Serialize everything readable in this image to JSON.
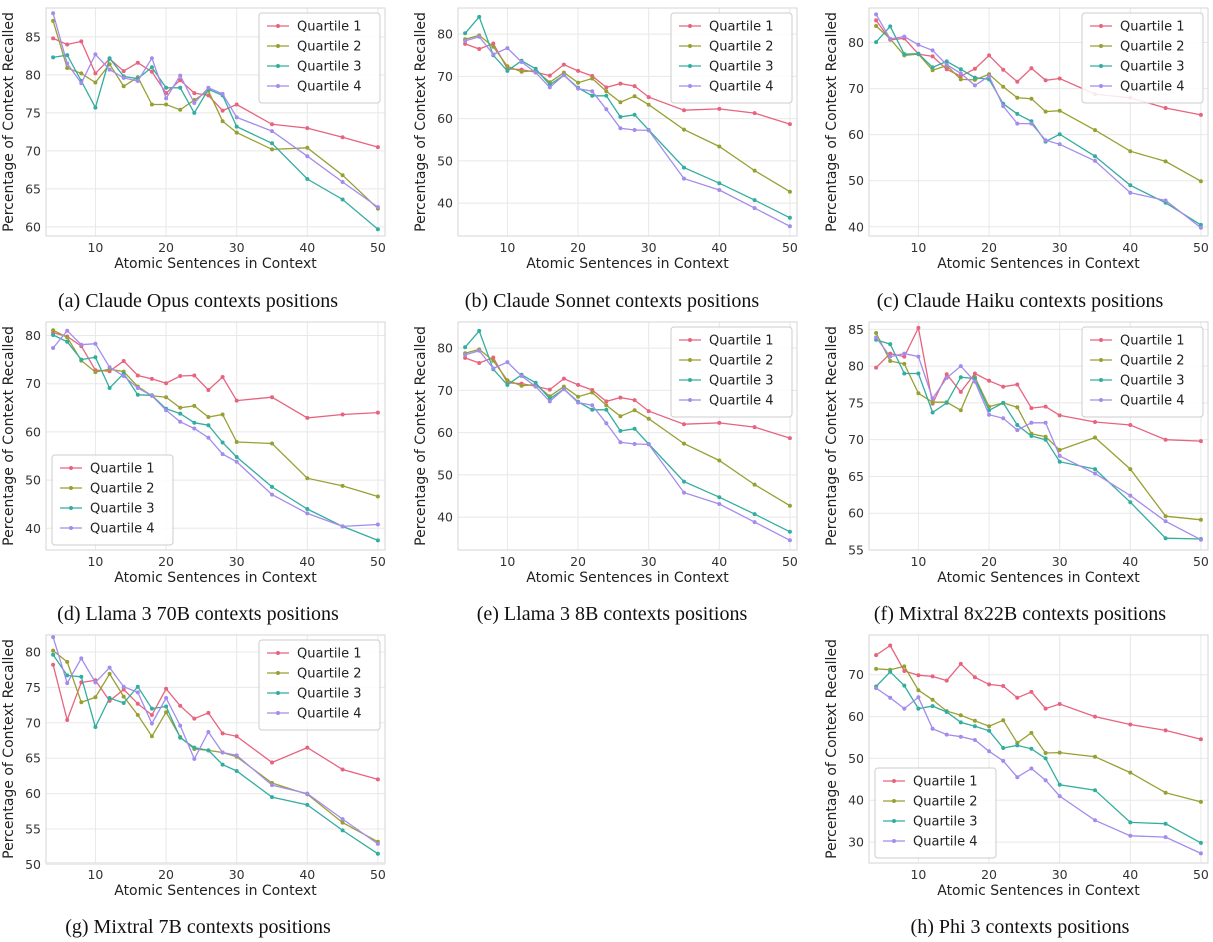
{
  "colors": {
    "Quartile 1": "#e8637e",
    "Quartile 2": "#98a032",
    "Quartile 3": "#33ad9f",
    "Quartile 4": "#a48cec"
  },
  "chart_data": [
    {
      "id": "a",
      "type": "line",
      "caption": "(a) Claude Opus contexts positions",
      "xlabel": "Atomic Sentences in Context",
      "ylabel": "Percentage of Context Recalled",
      "xlim": [
        3,
        51
      ],
      "ylim": [
        58.8,
        88.8
      ],
      "xticks": [
        10,
        20,
        30,
        40,
        50
      ],
      "yticks": [
        60,
        65,
        70,
        75,
        80,
        85
      ],
      "grid": true,
      "legend_position": "top-right",
      "x": [
        4,
        6,
        8,
        10,
        12,
        14,
        16,
        18,
        20,
        22,
        24,
        26,
        28,
        30,
        35,
        40,
        45,
        50
      ],
      "series": [
        {
          "name": "Quartile 1",
          "values": [
            84.8,
            84.0,
            84.4,
            80.2,
            82.1,
            80.5,
            81.6,
            80.4,
            77.6,
            79.3,
            77.6,
            77.3,
            75.3,
            76.1,
            73.5,
            73.0,
            71.8,
            70.5
          ]
        },
        {
          "name": "Quartile 2",
          "values": [
            87.1,
            80.9,
            80.2,
            79.0,
            81.4,
            78.5,
            79.7,
            76.1,
            76.1,
            75.4,
            76.7,
            77.9,
            73.9,
            72.4,
            70.2,
            70.4,
            66.8,
            62.4
          ]
        },
        {
          "name": "Quartile 3",
          "values": [
            82.3,
            82.6,
            79.2,
            75.7,
            82.2,
            79.8,
            79.5,
            81.0,
            78.3,
            78.3,
            75.0,
            78.1,
            77.3,
            73.2,
            71.0,
            66.3,
            63.6,
            59.7
          ]
        },
        {
          "name": "Quartile 4",
          "values": [
            88.1,
            81.5,
            78.9,
            82.7,
            80.7,
            79.6,
            79.2,
            82.2,
            76.9,
            79.9,
            76.3,
            78.3,
            77.5,
            74.4,
            72.6,
            69.3,
            65.9,
            62.6
          ]
        }
      ]
    },
    {
      "id": "b",
      "type": "line",
      "caption": "(b) Claude Sonnet contexts positions",
      "xlabel": "Atomic Sentences in Context",
      "ylabel": "Percentage of Context Recalled",
      "xlim": [
        3,
        51
      ],
      "ylim": [
        32.2,
        86.2
      ],
      "xticks": [
        10,
        20,
        30,
        40,
        50
      ],
      "yticks": [
        40,
        50,
        60,
        70,
        80
      ],
      "grid": true,
      "legend_position": "top-right",
      "x": [
        4,
        6,
        8,
        10,
        12,
        14,
        16,
        18,
        20,
        22,
        24,
        26,
        28,
        30,
        35,
        40,
        45,
        50
      ],
      "series": [
        {
          "name": "Quartile 1",
          "values": [
            77.7,
            76.5,
            77.8,
            71.8,
            71.6,
            71.0,
            70.2,
            72.8,
            71.3,
            70.1,
            67.4,
            68.3,
            67.7,
            65.1,
            62.0,
            62.3,
            61.3,
            58.7
          ]
        },
        {
          "name": "Quartile 2",
          "values": [
            78.8,
            79.7,
            77.0,
            72.4,
            71.1,
            71.4,
            68.6,
            70.9,
            68.5,
            69.5,
            66.5,
            63.9,
            65.3,
            63.3,
            57.4,
            53.4,
            47.7,
            42.7
          ]
        },
        {
          "name": "Quartile 3",
          "values": [
            80.2,
            84.1,
            75.0,
            71.3,
            73.7,
            71.8,
            68.0,
            70.3,
            67.3,
            65.4,
            65.4,
            60.4,
            60.9,
            57.3,
            48.4,
            44.7,
            40.7,
            36.5
          ]
        },
        {
          "name": "Quartile 4",
          "values": [
            78.4,
            79.4,
            75.2,
            76.7,
            73.4,
            70.9,
            67.4,
            70.3,
            67.1,
            66.5,
            62.2,
            57.7,
            57.3,
            57.2,
            45.8,
            43.1,
            38.8,
            34.5
          ]
        }
      ]
    },
    {
      "id": "c",
      "type": "line",
      "caption": "(c) Claude Haiku contexts positions",
      "xlabel": "Atomic Sentences in Context",
      "ylabel": "Percentage of Context Recalled",
      "xlim": [
        3,
        51
      ],
      "ylim": [
        38.0,
        87.5
      ],
      "xticks": [
        10,
        20,
        30,
        40,
        50
      ],
      "yticks": [
        40,
        50,
        60,
        70,
        80
      ],
      "grid": true,
      "legend_position": "top-right",
      "x": [
        4,
        6,
        8,
        10,
        12,
        14,
        16,
        18,
        20,
        22,
        24,
        26,
        28,
        30,
        35,
        40,
        45,
        50
      ],
      "series": [
        {
          "name": "Quartile 1",
          "values": [
            84.8,
            80.6,
            80.9,
            77.5,
            77.0,
            74.2,
            72.7,
            74.3,
            77.2,
            74.1,
            71.5,
            74.4,
            71.8,
            72.2,
            68.8,
            68.0,
            65.8,
            64.3
          ]
        },
        {
          "name": "Quartile 2",
          "values": [
            83.6,
            80.8,
            77.2,
            77.5,
            74.0,
            75.0,
            72.0,
            71.9,
            73.1,
            70.4,
            68.0,
            67.8,
            65.0,
            65.2,
            61.0,
            56.4,
            54.2,
            49.9
          ]
        },
        {
          "name": "Quartile 3",
          "values": [
            80.1,
            83.5,
            77.5,
            77.6,
            74.6,
            75.9,
            74.2,
            72.4,
            72.0,
            66.7,
            64.5,
            62.9,
            58.5,
            60.1,
            55.3,
            49.0,
            45.2,
            40.4
          ]
        },
        {
          "name": "Quartile 4",
          "values": [
            86.1,
            80.8,
            81.3,
            79.5,
            78.3,
            75.2,
            73.3,
            70.7,
            72.7,
            66.2,
            62.4,
            62.4,
            58.8,
            57.9,
            54.3,
            47.4,
            45.7,
            39.8
          ]
        }
      ]
    },
    {
      "id": "d",
      "type": "line",
      "caption": "(d) Llama 3 70B contexts positions",
      "xlabel": "Atomic Sentences in Context",
      "ylabel": "Percentage of Context Recalled",
      "xlim": [
        3,
        51
      ],
      "ylim": [
        35.5,
        82.8
      ],
      "xticks": [
        10,
        20,
        30,
        40,
        50
      ],
      "yticks": [
        40,
        50,
        60,
        70,
        80
      ],
      "grid": true,
      "legend_position": "lower-left",
      "x": [
        4,
        6,
        8,
        10,
        12,
        14,
        16,
        18,
        20,
        22,
        24,
        26,
        28,
        30,
        35,
        40,
        45,
        50
      ],
      "series": [
        {
          "name": "Quartile 1",
          "values": [
            80.6,
            79.8,
            77.8,
            72.8,
            72.6,
            74.7,
            71.7,
            71.0,
            70.1,
            71.6,
            71.7,
            68.7,
            71.4,
            66.5,
            67.2,
            62.9,
            63.6,
            64.0
          ]
        },
        {
          "name": "Quartile 2",
          "values": [
            81.1,
            79.6,
            74.8,
            72.4,
            73.0,
            72.5,
            69.4,
            67.5,
            67.2,
            65.0,
            65.4,
            63.1,
            63.6,
            57.9,
            57.6,
            50.4,
            48.8,
            46.6
          ]
        },
        {
          "name": "Quartile 3",
          "values": [
            80.1,
            78.7,
            75.0,
            75.5,
            69.1,
            72.1,
            67.7,
            67.6,
            64.8,
            63.8,
            61.9,
            61.4,
            57.8,
            54.8,
            48.6,
            44.0,
            40.4,
            37.5
          ]
        },
        {
          "name": "Quartile 4",
          "values": [
            77.4,
            81.0,
            78.1,
            78.3,
            73.4,
            71.6,
            69.1,
            67.5,
            64.5,
            62.1,
            60.7,
            58.8,
            55.4,
            53.8,
            47.0,
            43.1,
            40.4,
            40.8
          ]
        }
      ]
    },
    {
      "id": "e",
      "type": "line",
      "caption": "(e) Llama 3 8B contexts positions",
      "xlabel": "Atomic Sentences in Context",
      "ylabel": "Percentage of Context Recalled",
      "xlim": [
        3,
        51
      ],
      "ylim": [
        32.2,
        86.2
      ],
      "xticks": [
        10,
        20,
        30,
        40,
        50
      ],
      "yticks": [
        40,
        50,
        60,
        70,
        80
      ],
      "grid": true,
      "legend_position": "top-right",
      "x": [
        4,
        6,
        8,
        10,
        12,
        14,
        16,
        18,
        20,
        22,
        24,
        26,
        28,
        30,
        35,
        40,
        45,
        50
      ],
      "series": [
        {
          "name": "Quartile 1",
          "values": [
            77.7,
            76.5,
            77.8,
            71.8,
            71.6,
            71.0,
            70.2,
            72.8,
            71.3,
            70.1,
            67.4,
            68.3,
            67.7,
            65.1,
            62.0,
            62.3,
            61.3,
            58.7
          ]
        },
        {
          "name": "Quartile 2",
          "values": [
            78.8,
            79.7,
            77.0,
            72.4,
            71.1,
            71.4,
            68.6,
            70.9,
            68.5,
            69.5,
            66.5,
            63.9,
            65.3,
            63.3,
            57.4,
            53.4,
            47.7,
            42.7
          ]
        },
        {
          "name": "Quartile 3",
          "values": [
            80.2,
            84.1,
            75.0,
            71.3,
            73.7,
            71.8,
            68.0,
            70.3,
            67.3,
            65.4,
            65.4,
            60.4,
            60.9,
            57.3,
            48.4,
            44.7,
            40.7,
            36.5
          ]
        },
        {
          "name": "Quartile 4",
          "values": [
            78.4,
            79.4,
            75.2,
            76.7,
            73.4,
            70.9,
            67.4,
            70.3,
            67.1,
            66.5,
            62.2,
            57.7,
            57.3,
            57.2,
            45.8,
            43.1,
            38.8,
            34.5
          ]
        }
      ]
    },
    {
      "id": "f",
      "type": "line",
      "caption": "(f) Mixtral 8x22B contexts positions",
      "xlabel": "Atomic Sentences in Context",
      "ylabel": "Percentage of Context Recalled",
      "xlim": [
        3,
        51
      ],
      "ylim": [
        55.0,
        86.0
      ],
      "xticks": [
        10,
        20,
        30,
        40,
        50
      ],
      "yticks": [
        55,
        60,
        65,
        70,
        75,
        80,
        85
      ],
      "grid": true,
      "legend_position": "top-right",
      "x": [
        4,
        6,
        8,
        10,
        12,
        14,
        16,
        18,
        20,
        22,
        24,
        26,
        28,
        30,
        35,
        40,
        45,
        50
      ],
      "series": [
        {
          "name": "Quartile 1",
          "values": [
            79.8,
            81.7,
            81.3,
            85.2,
            74.9,
            78.9,
            76.5,
            79.0,
            78.0,
            77.2,
            77.5,
            74.3,
            74.5,
            73.3,
            72.4,
            72.0,
            70.0,
            69.8
          ]
        },
        {
          "name": "Quartile 2",
          "values": [
            84.5,
            80.7,
            80.3,
            76.3,
            75.1,
            75.1,
            74.0,
            78.5,
            74.5,
            75.0,
            74.4,
            70.8,
            70.4,
            68.6,
            70.3,
            66.0,
            59.6,
            59.1
          ]
        },
        {
          "name": "Quartile 3",
          "values": [
            83.6,
            83.0,
            79.0,
            79.0,
            73.7,
            75.0,
            78.5,
            78.3,
            74.0,
            75.0,
            72.0,
            70.5,
            70.0,
            67.0,
            66.0,
            61.5,
            56.6,
            56.5
          ]
        },
        {
          "name": "Quartile 4",
          "values": [
            83.9,
            81.3,
            81.7,
            81.3,
            75.6,
            78.4,
            80.0,
            77.9,
            73.4,
            72.9,
            71.3,
            72.3,
            72.3,
            67.8,
            65.4,
            62.4,
            58.9,
            56.4
          ]
        }
      ]
    },
    {
      "id": "g",
      "type": "line",
      "caption": "(g) Mixtral 7B contexts positions",
      "xlabel": "Atomic Sentences in Context",
      "ylabel": "Percentage of Context Recalled",
      "xlim": [
        3,
        51
      ],
      "ylim": [
        50.2,
        82.4
      ],
      "xticks": [
        10,
        20,
        30,
        40,
        50
      ],
      "yticks": [
        50,
        55,
        60,
        65,
        70,
        75,
        80
      ],
      "grid": true,
      "legend_position": "top-right",
      "x": [
        4,
        6,
        8,
        10,
        12,
        14,
        16,
        18,
        20,
        22,
        24,
        26,
        28,
        30,
        35,
        40,
        45,
        50
      ],
      "series": [
        {
          "name": "Quartile 1",
          "values": [
            78.2,
            70.4,
            75.7,
            76.0,
            73.1,
            74.7,
            72.7,
            71.1,
            74.8,
            72.4,
            70.6,
            71.4,
            68.5,
            68.1,
            64.4,
            66.5,
            63.4,
            62.0
          ]
        },
        {
          "name": "Quartile 2",
          "values": [
            80.2,
            78.6,
            72.9,
            73.6,
            76.9,
            73.7,
            71.1,
            68.1,
            71.5,
            68.0,
            66.3,
            66.1,
            65.8,
            65.2,
            61.5,
            59.9,
            55.9,
            53.2
          ]
        },
        {
          "name": "Quartile 3",
          "values": [
            79.6,
            76.7,
            76.5,
            69.4,
            73.5,
            72.8,
            75.1,
            72.0,
            72.3,
            67.9,
            66.5,
            66.1,
            64.1,
            63.2,
            59.5,
            58.4,
            54.8,
            51.5
          ]
        },
        {
          "name": "Quartile 4",
          "values": [
            82.1,
            75.6,
            79.1,
            75.7,
            77.8,
            75.1,
            74.3,
            69.9,
            73.5,
            69.6,
            64.9,
            68.7,
            65.8,
            65.4,
            61.2,
            60.0,
            56.4,
            52.9
          ]
        }
      ]
    },
    {
      "id": "h",
      "type": "line",
      "caption": "(h) Phi 3 contexts positions",
      "xlabel": "Atomic Sentences in Context",
      "ylabel": "Percentage of Context Recalled",
      "xlim": [
        3,
        51
      ],
      "ylim": [
        25.0,
        79.5
      ],
      "xticks": [
        10,
        20,
        30,
        40,
        50
      ],
      "yticks": [
        30,
        40,
        50,
        60,
        70
      ],
      "grid": true,
      "legend_position": "lower-left",
      "x": [
        4,
        6,
        8,
        10,
        12,
        14,
        16,
        18,
        20,
        22,
        24,
        26,
        28,
        30,
        35,
        40,
        45,
        50
      ],
      "series": [
        {
          "name": "Quartile 1",
          "values": [
            74.7,
            77.0,
            70.9,
            69.9,
            69.6,
            68.6,
            72.6,
            69.4,
            67.7,
            67.3,
            64.5,
            65.9,
            61.9,
            63.0,
            60.0,
            58.1,
            56.7,
            54.6
          ]
        },
        {
          "name": "Quartile 2",
          "values": [
            71.4,
            71.2,
            72.0,
            66.3,
            64.0,
            61.3,
            60.3,
            59.0,
            57.7,
            59.1,
            53.7,
            56.1,
            51.3,
            51.4,
            50.4,
            46.6,
            41.8,
            39.6
          ]
        },
        {
          "name": "Quartile 3",
          "values": [
            67.2,
            70.7,
            67.4,
            61.9,
            62.5,
            61.1,
            58.6,
            57.7,
            56.6,
            52.5,
            53.1,
            52.3,
            50.0,
            43.7,
            42.4,
            34.7,
            34.4,
            29.8
          ]
        },
        {
          "name": "Quartile 4",
          "values": [
            66.8,
            64.5,
            61.9,
            64.6,
            57.1,
            55.7,
            55.2,
            54.4,
            51.7,
            49.4,
            45.5,
            47.6,
            44.8,
            41.0,
            35.2,
            31.5,
            31.2,
            27.3
          ]
        }
      ]
    }
  ]
}
